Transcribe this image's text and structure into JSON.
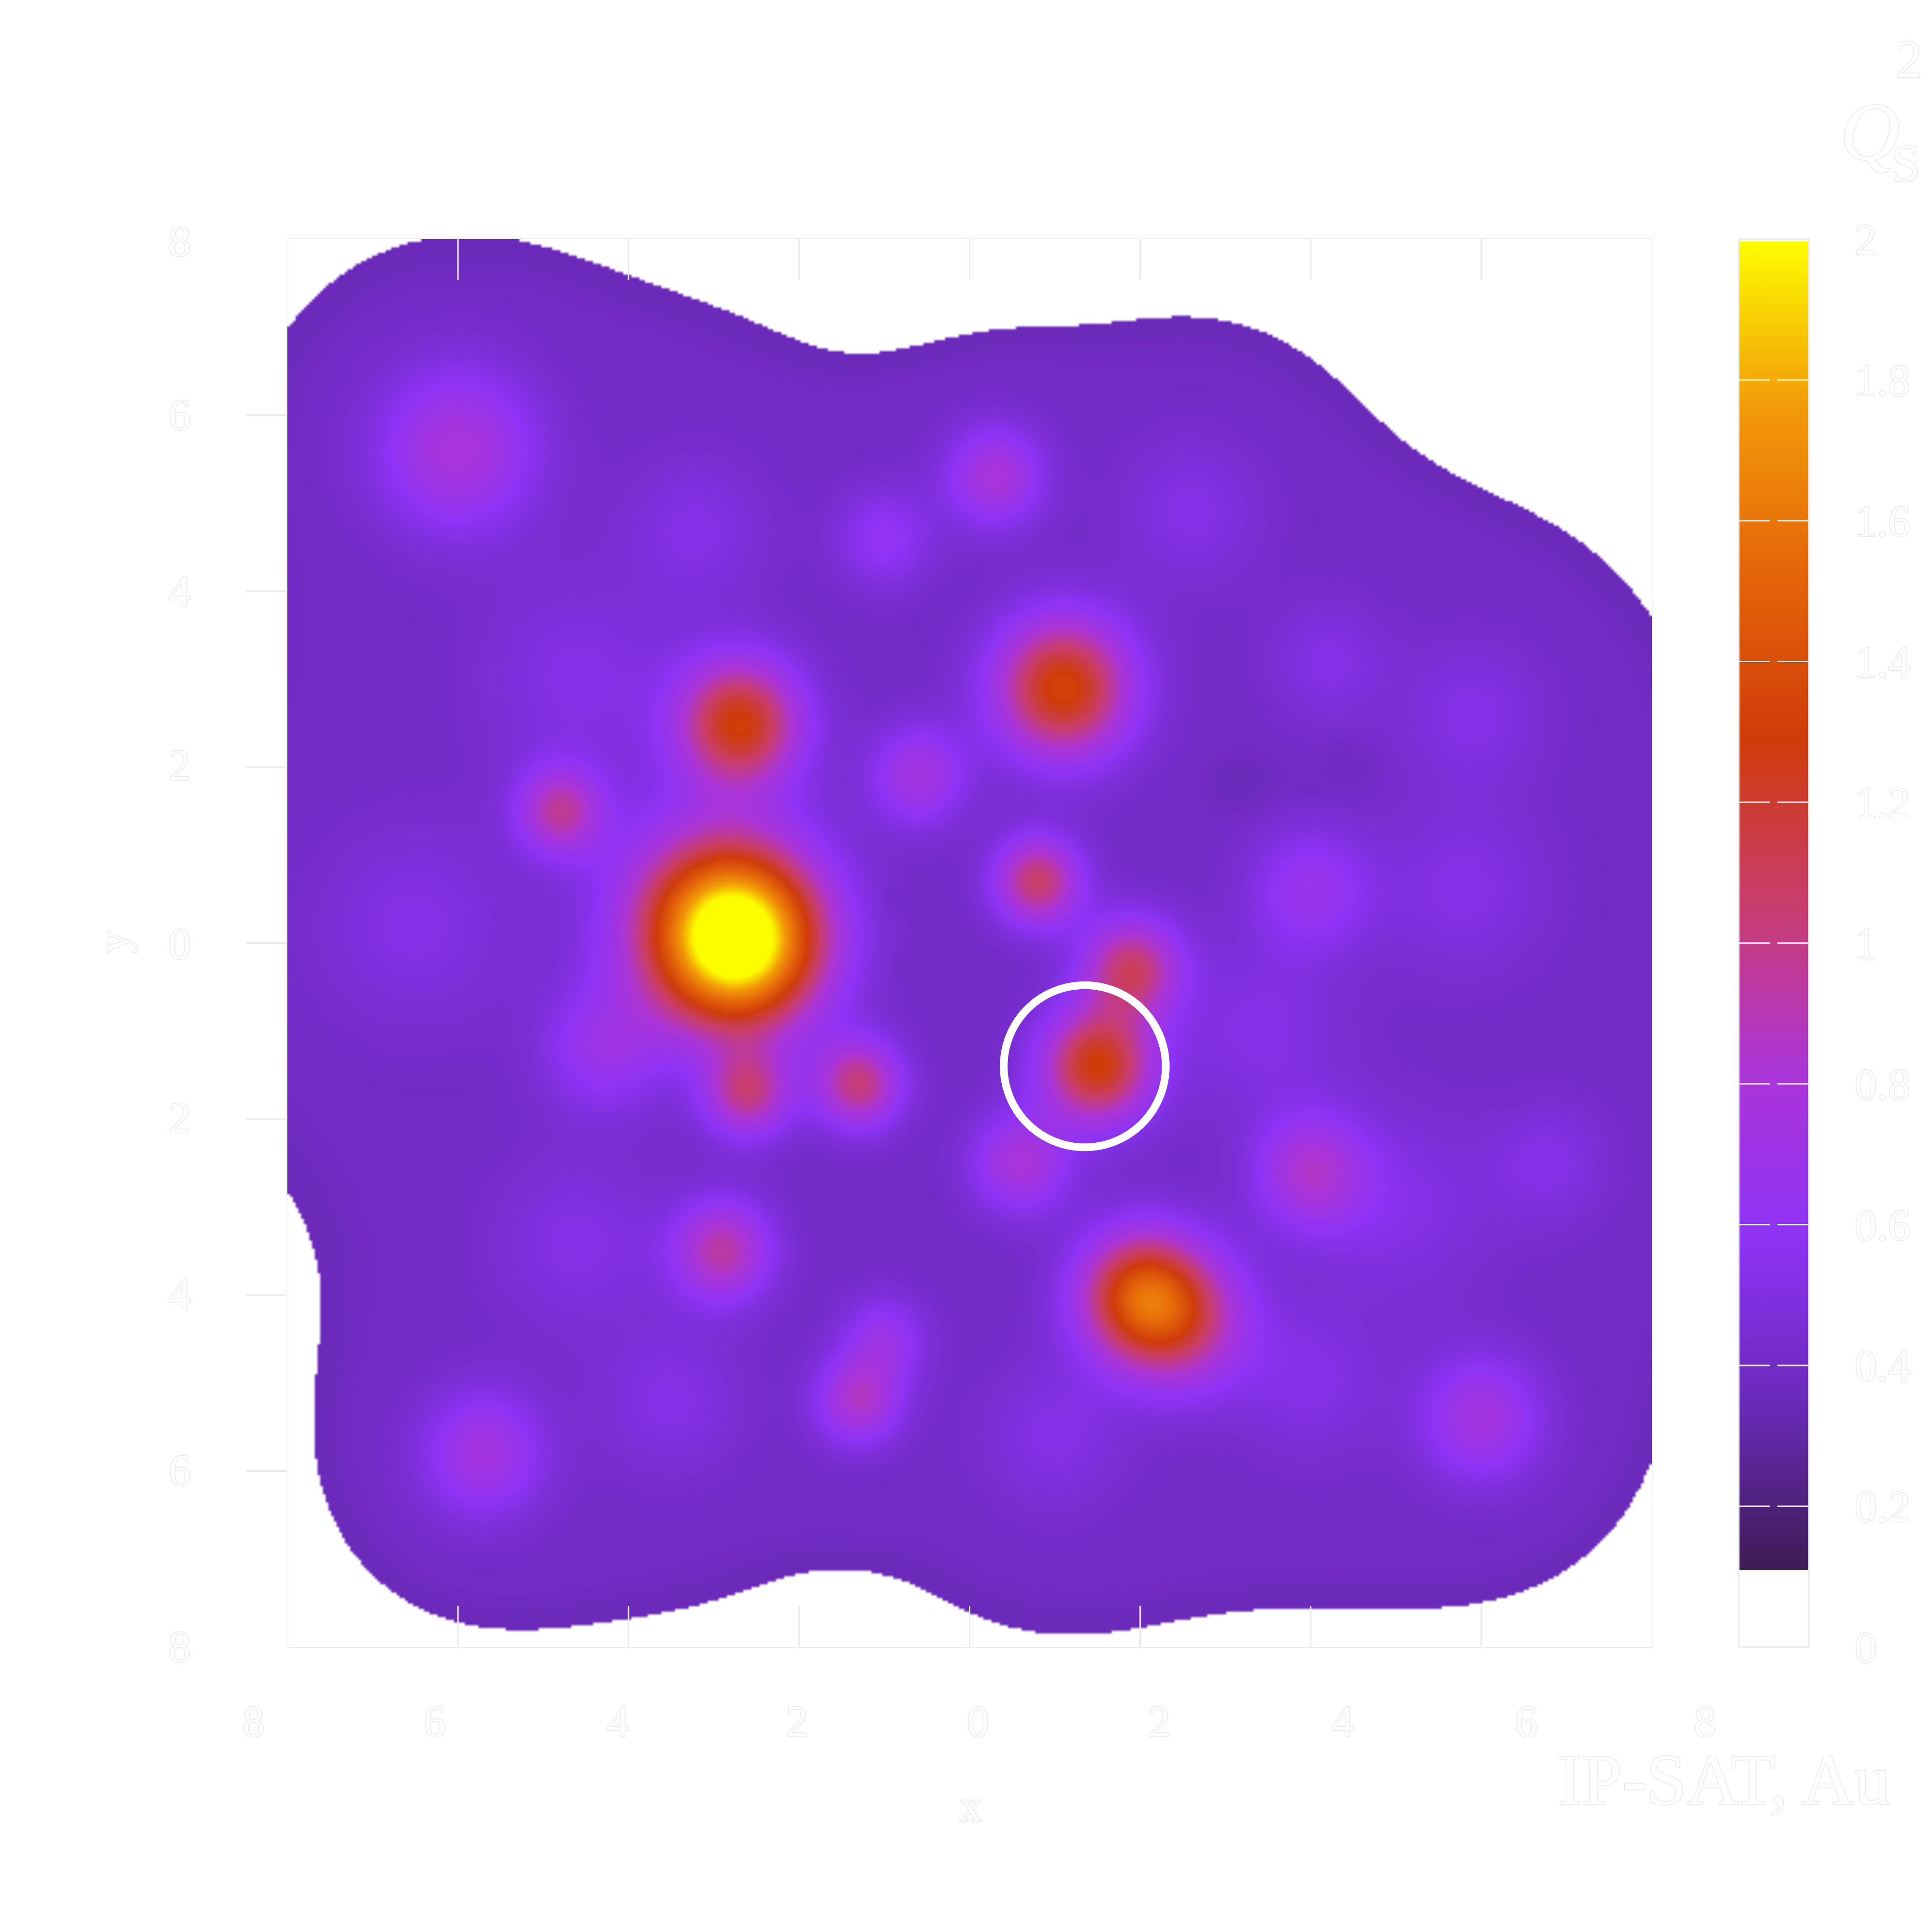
{
  "chart_data": {
    "type": "heatmap",
    "title": "IP-SAT, Au",
    "colorbar_label": "Q",
    "colorbar_label_sub": "S",
    "colorbar_label_sup": "2",
    "xlabel": "x",
    "ylabel": "y",
    "xlim": [
      -8,
      8
    ],
    "ylim": [
      -8,
      8
    ],
    "zlim": [
      0,
      2
    ],
    "x_tick_labels": [
      "8",
      "6",
      "4",
      "2",
      "0",
      "2",
      "4",
      "6",
      "8"
    ],
    "y_tick_labels": [
      "8",
      "6",
      "4",
      "2",
      "0",
      "2",
      "4",
      "6",
      "8"
    ],
    "colorbar_tick_labels": [
      "2",
      "1.8",
      "1.6",
      "1.4",
      "1.2",
      "1",
      "0.8",
      "0.6",
      "0.4",
      "0.2",
      "0"
    ],
    "colormap": [
      "#3d1c55",
      "#6a2ab8",
      "#8e33f5",
      "#ac35d8",
      "#c93d6e",
      "#cf3c0a",
      "#e5650a",
      "#f29a08",
      "#fdfd00"
    ],
    "background_color": "#ffffff",
    "threshold": 0.25,
    "base_level": 0.3,
    "blobs": [
      {
        "x": -6.0,
        "y": 5.6,
        "a": 0.45,
        "s": 0.65
      },
      {
        "x": -5.7,
        "y": -5.8,
        "a": 0.4,
        "s": 0.5
      },
      {
        "x": 6.0,
        "y": -5.4,
        "a": 0.4,
        "s": 0.5
      },
      {
        "x": -2.7,
        "y": 0.0,
        "a": 1.6,
        "s": 0.65
      },
      {
        "x": -3.0,
        "y": 0.3,
        "a": 0.7,
        "s": 0.8
      },
      {
        "x": -2.7,
        "y": 2.5,
        "a": 1.0,
        "s": 0.5
      },
      {
        "x": 1.1,
        "y": 2.9,
        "a": 1.05,
        "s": 0.55
      },
      {
        "x": 1.5,
        "y": -1.4,
        "a": 1.0,
        "s": 0.45
      },
      {
        "x": 1.9,
        "y": -0.3,
        "a": 0.75,
        "s": 0.4
      },
      {
        "x": 2.0,
        "y": -4.0,
        "a": 1.0,
        "s": 0.5
      },
      {
        "x": 2.5,
        "y": -4.3,
        "a": 0.6,
        "s": 0.55
      },
      {
        "x": 0.8,
        "y": 0.7,
        "a": 0.75,
        "s": 0.35
      },
      {
        "x": -4.8,
        "y": 1.5,
        "a": 0.6,
        "s": 0.35
      },
      {
        "x": -2.6,
        "y": -1.7,
        "a": 0.65,
        "s": 0.35
      },
      {
        "x": -1.3,
        "y": -1.6,
        "a": 0.7,
        "s": 0.35
      },
      {
        "x": -2.9,
        "y": -3.5,
        "a": 0.6,
        "s": 0.4
      },
      {
        "x": -1.3,
        "y": -5.2,
        "a": 0.5,
        "s": 0.35
      },
      {
        "x": -1.0,
        "y": -4.5,
        "a": 0.3,
        "s": 0.35
      },
      {
        "x": 0.3,
        "y": 5.3,
        "a": 0.45,
        "s": 0.4
      },
      {
        "x": -0.6,
        "y": 1.9,
        "a": 0.4,
        "s": 0.4
      },
      {
        "x": 4.0,
        "y": -2.6,
        "a": 0.45,
        "s": 0.45
      },
      {
        "x": 0.6,
        "y": -2.5,
        "a": 0.45,
        "s": 0.4
      },
      {
        "x": 4.0,
        "y": 0.6,
        "a": 0.3,
        "s": 0.5
      },
      {
        "x": -4.3,
        "y": -1.2,
        "a": 0.3,
        "s": 0.5
      },
      {
        "x": -1.0,
        "y": 4.6,
        "a": 0.25,
        "s": 0.4
      },
      {
        "x": -4.6,
        "y": 3.0,
        "a": 0.15,
        "s": 0.8
      },
      {
        "x": -3.2,
        "y": 4.7,
        "a": 0.15,
        "s": 0.6
      },
      {
        "x": 2.6,
        "y": 4.9,
        "a": 0.15,
        "s": 0.6
      },
      {
        "x": 4.2,
        "y": 3.2,
        "a": 0.15,
        "s": 0.5
      },
      {
        "x": 5.9,
        "y": 2.6,
        "a": 0.15,
        "s": 0.6
      },
      {
        "x": 5.8,
        "y": 0.6,
        "a": 0.15,
        "s": 0.7
      },
      {
        "x": 6.8,
        "y": -2.5,
        "a": 0.15,
        "s": 0.5
      },
      {
        "x": -6.5,
        "y": 0.2,
        "a": 0.15,
        "s": 0.8
      },
      {
        "x": -4.6,
        "y": -3.4,
        "a": 0.15,
        "s": 0.7
      },
      {
        "x": -3.5,
        "y": -5.2,
        "a": 0.15,
        "s": 0.6
      },
      {
        "x": 1.0,
        "y": -5.6,
        "a": 0.15,
        "s": 0.6
      },
      {
        "x": 4.0,
        "y": -5.0,
        "a": 0.15,
        "s": 0.6
      },
      {
        "x": 5.0,
        "y": -3.0,
        "a": 0.15,
        "s": 0.8
      },
      {
        "x": 3.4,
        "y": -1.0,
        "a": 0.15,
        "s": 0.7
      }
    ],
    "holes": [
      {
        "x": -0.6,
        "y": 3.7,
        "a": 0.4,
        "s": 0.12
      },
      {
        "x": -0.9,
        "y": 0.5,
        "a": 0.45,
        "s": 0.25
      },
      {
        "x": -0.8,
        "y": -0.3,
        "a": 0.45,
        "s": 0.28
      },
      {
        "x": 3.1,
        "y": 1.8,
        "a": 0.5,
        "s": 0.55
      },
      {
        "x": 4.5,
        "y": 2.0,
        "a": 0.45,
        "s": 0.55
      },
      {
        "x": 5.2,
        "y": 1.0,
        "a": 0.2,
        "s": 0.4
      },
      {
        "x": 6.4,
        "y": -1.8,
        "a": 0.4,
        "s": 0.45
      }
    ],
    "circle_marker": {
      "x": 1.35,
      "y": -1.4,
      "r": 0.95,
      "color": "#ffffff"
    }
  }
}
